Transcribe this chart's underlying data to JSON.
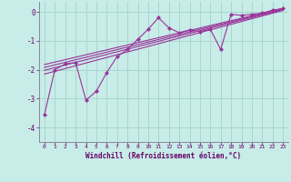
{
  "xlabel": "Windchill (Refroidissement éolien,°C)",
  "background_color": "#c8ece8",
  "grid_color": "#a8d8d0",
  "line_color": "#993399",
  "xlim": [
    -0.5,
    23.5
  ],
  "ylim": [
    -4.5,
    0.35
  ],
  "yticks": [
    0,
    -1,
    -2,
    -3,
    -4
  ],
  "xticks": [
    0,
    1,
    2,
    3,
    4,
    5,
    6,
    7,
    8,
    9,
    10,
    11,
    12,
    13,
    14,
    15,
    16,
    17,
    18,
    19,
    20,
    21,
    22,
    23
  ],
  "data_x": [
    0,
    1,
    2,
    3,
    4,
    5,
    6,
    7,
    8,
    9,
    10,
    11,
    12,
    13,
    14,
    15,
    16,
    17,
    18,
    19,
    20,
    21,
    22,
    23
  ],
  "data_y": [
    -3.55,
    -2.0,
    -1.8,
    -1.75,
    -3.05,
    -2.75,
    -2.1,
    -1.55,
    -1.3,
    -0.95,
    -0.6,
    -0.2,
    -0.55,
    -0.72,
    -0.62,
    -0.68,
    -0.6,
    -1.3,
    -0.08,
    -0.12,
    -0.08,
    -0.04,
    0.06,
    0.12
  ],
  "trend_lines": [
    {
      "x0": 0,
      "x1": 23,
      "y0": -1.82,
      "y1": 0.12
    },
    {
      "x0": 0,
      "x1": 23,
      "y0": -1.92,
      "y1": 0.1
    },
    {
      "x0": 0,
      "x1": 23,
      "y0": -2.02,
      "y1": 0.08
    },
    {
      "x0": 0,
      "x1": 23,
      "y0": -2.15,
      "y1": 0.05
    }
  ]
}
